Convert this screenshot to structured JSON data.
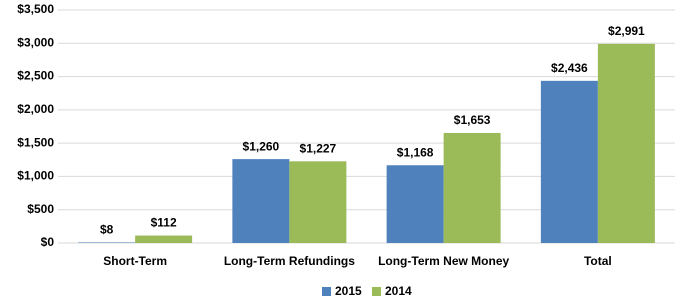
{
  "chart_data": {
    "type": "bar",
    "categories": [
      "Short-Term",
      "Long-Term Refundings",
      "Long-Term New Money",
      "Total"
    ],
    "series": [
      {
        "name": "2015",
        "color": "#4f81bd",
        "values": [
          8,
          1260,
          1168,
          2436
        ],
        "value_labels": [
          "$8",
          "$1,260",
          "$1,168",
          "$2,436"
        ]
      },
      {
        "name": "2014",
        "color": "#9bbb59",
        "values": [
          112,
          1227,
          1653,
          2991
        ],
        "value_labels": [
          "$112",
          "$1,227",
          "$1,653",
          "$2,991"
        ]
      }
    ],
    "ylim": [
      0,
      3500
    ],
    "yticks": [
      {
        "value": 0,
        "label": "$0"
      },
      {
        "value": 500,
        "label": "$500"
      },
      {
        "value": 1000,
        "label": "$1,000"
      },
      {
        "value": 1500,
        "label": "$1,500"
      },
      {
        "value": 2000,
        "label": "$2,000"
      },
      {
        "value": 2500,
        "label": "$2,500"
      },
      {
        "value": 3000,
        "label": "$3,000"
      },
      {
        "value": 3500,
        "label": "$3,500"
      }
    ],
    "grid": true,
    "legend": "bottom"
  }
}
